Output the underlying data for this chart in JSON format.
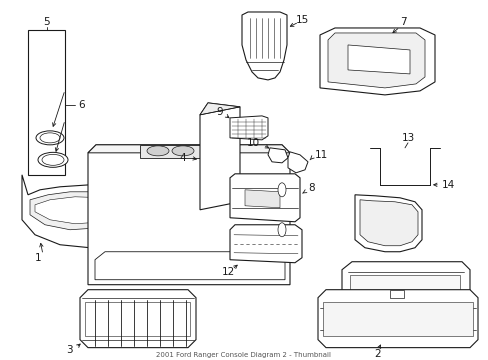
{
  "title": "2001 Ford Ranger Console Diagram 2 - Thumbnail",
  "bg_color": "#ffffff",
  "line_color": "#1a1a1a",
  "figsize": [
    4.89,
    3.6
  ],
  "dpi": 100,
  "label_fontsize": 7.5,
  "lw": 0.7
}
